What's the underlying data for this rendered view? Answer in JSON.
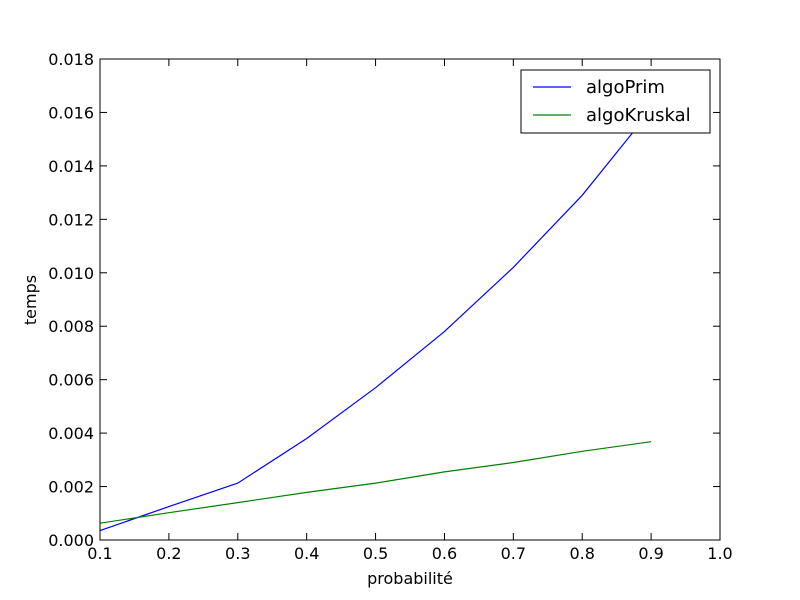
{
  "chart_data": {
    "type": "line",
    "title": "",
    "xlabel": "probabilité",
    "ylabel": "temps",
    "xlim": [
      0.1,
      1.0
    ],
    "ylim": [
      0.0,
      0.018
    ],
    "x_ticks": [
      "0.1",
      "0.2",
      "0.3",
      "0.4",
      "0.5",
      "0.6",
      "0.7",
      "0.8",
      "0.9",
      "1.0"
    ],
    "y_ticks": [
      "0.000",
      "0.002",
      "0.004",
      "0.006",
      "0.008",
      "0.010",
      "0.012",
      "0.014",
      "0.016",
      "0.018"
    ],
    "x": [
      0.1,
      0.2,
      0.3,
      0.4,
      0.5,
      0.6,
      0.7,
      0.8,
      0.9
    ],
    "series": [
      {
        "name": "algoPrim",
        "color": "#0000ff",
        "values": [
          0.00035,
          0.00125,
          0.00213,
          0.0038,
          0.0057,
          0.0078,
          0.0102,
          0.0129,
          0.0161
        ]
      },
      {
        "name": "algoKruskal",
        "color": "#008000",
        "values": [
          0.00063,
          0.00102,
          0.0014,
          0.00178,
          0.00213,
          0.00255,
          0.0029,
          0.00332,
          0.00368
        ]
      }
    ],
    "grid": false,
    "legend_position": "top-right"
  }
}
